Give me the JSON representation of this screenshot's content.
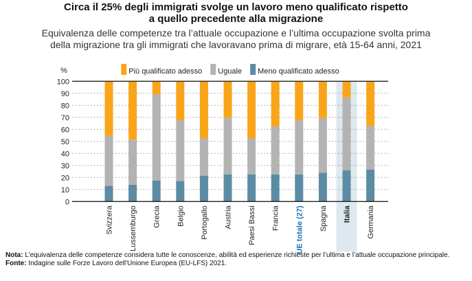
{
  "chart_data": {
    "type": "bar",
    "stacked": true,
    "title": "Circa il 25% degli immigrati svolge un lavoro meno qualificato rispetto a quello precedente alla migrazione",
    "subtitle": "Equivalenza delle competenze tra l'attuale occupazione e l'ultima occupazione svolta prima della migrazione tra gli immigrati che lavoravano prima di migrare, età 15-64 anni, 2021",
    "ylabel": "%",
    "ylim": [
      0,
      100
    ],
    "yticks": [
      0,
      10,
      20,
      30,
      40,
      50,
      60,
      70,
      80,
      90,
      100
    ],
    "grid": true,
    "legend": "top",
    "categories": [
      "Svizzera",
      "Lussemburgo",
      "Grecia",
      "Belgio",
      "Portogallo",
      "Austria",
      "Paesi Bassi",
      "Francia",
      "UE totale (27)",
      "Spagna",
      "Italia",
      "Germania"
    ],
    "highlight": "Italia",
    "highlight_eu": "UE totale (27)",
    "series": [
      {
        "name": "Meno qualificato adesso",
        "color": "#5b8ca3",
        "values": [
          13,
          14,
          17.5,
          17,
          21.5,
          22.5,
          22.5,
          22.5,
          22.5,
          24,
          26,
          26.5
        ]
      },
      {
        "name": "Uguale",
        "color": "#b3b3b3",
        "values": [
          41.5,
          37.5,
          71.5,
          50.5,
          31,
          47,
          30,
          40,
          45,
          45.5,
          60.5,
          36.5
        ]
      },
      {
        "name": "Più qualificato adesso",
        "color": "#f9a51a",
        "values": [
          45.5,
          48.5,
          11,
          32.5,
          47.5,
          30.5,
          47.5,
          37.5,
          32.5,
          30.5,
          13.5,
          37
        ]
      }
    ]
  },
  "title": "Circa il 25% degli immigrati svolge un lavoro meno qualificato rispetto\na quello precedente alla migrazione",
  "subtitle": "Equivalenza delle competenze tra l’attuale occupazione e l’ultima occupazione svolta prima\ndella migrazione tra gli immigrati che lavoravano prima di migrare, età 15-64 anni, 2021",
  "note_label": "Nota:",
  "note": " L’equivalenza delle competenze considera tutte le conoscenze, abilità ed esperienze richieste per l’ultima e l’attuale occupazione principale.",
  "source_label": "Fonte:",
  "source": " Indagine sulle Forze Lavoro dell'Unione Europea (EU-LFS) 2021."
}
